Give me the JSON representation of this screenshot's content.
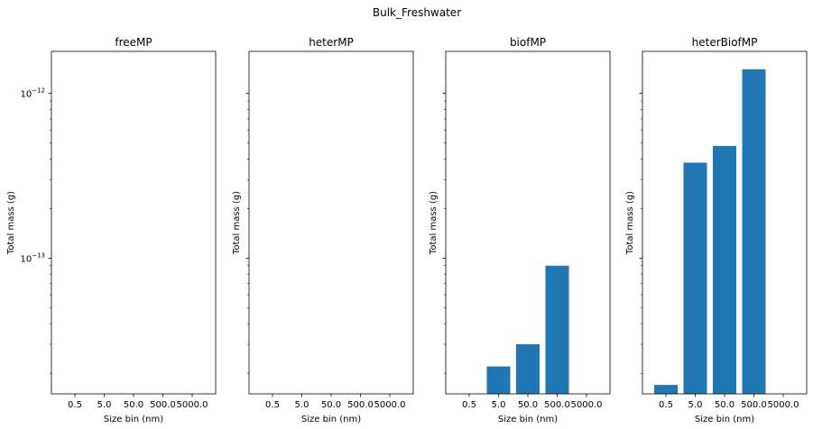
{
  "suptitle": "Bulk_Freshwater",
  "chart_data": [
    {
      "type": "bar",
      "title": "freeMP",
      "xlabel": "Size bin (nm)",
      "ylabel": "Total mass (g)",
      "yscale": "log",
      "categories": [
        "0.5",
        "5.0",
        "50.0",
        "500.0",
        "5000.0"
      ],
      "values": [
        0,
        0,
        0,
        0,
        0
      ],
      "y_ticks_labeled": [
        "10^-13",
        "10^-12"
      ]
    },
    {
      "type": "bar",
      "title": "heterMP",
      "xlabel": "Size bin (nm)",
      "ylabel": "Total mass (g)",
      "yscale": "log",
      "categories": [
        "0.5",
        "5.0",
        "50.0",
        "500.0",
        "5000.0"
      ],
      "values": [
        0,
        0,
        0,
        0,
        0
      ]
    },
    {
      "type": "bar",
      "title": "biofMP",
      "xlabel": "Size bin (nm)",
      "ylabel": "Total mass (g)",
      "yscale": "log",
      "categories": [
        "0.5",
        "5.0",
        "50.0",
        "500.0",
        "5000.0"
      ],
      "values": [
        0,
        2.2e-14,
        3e-14,
        9e-14,
        0
      ]
    },
    {
      "type": "bar",
      "title": "heterBiofMP",
      "xlabel": "Size bin (nm)",
      "ylabel": "Total mass (g)",
      "yscale": "log",
      "categories": [
        "0.5",
        "5.0",
        "50.0",
        "500.0",
        "5000.0"
      ],
      "values": [
        1.7e-14,
        3.8e-13,
        4.8e-13,
        1.4e-12,
        0
      ]
    }
  ],
  "shared_y": {
    "scale": "log",
    "ylim": [
      1.5e-14,
      1.8e-12
    ]
  },
  "colors": {
    "bar": "#1f77b4",
    "axes": "#000000",
    "background": "#ffffff"
  }
}
